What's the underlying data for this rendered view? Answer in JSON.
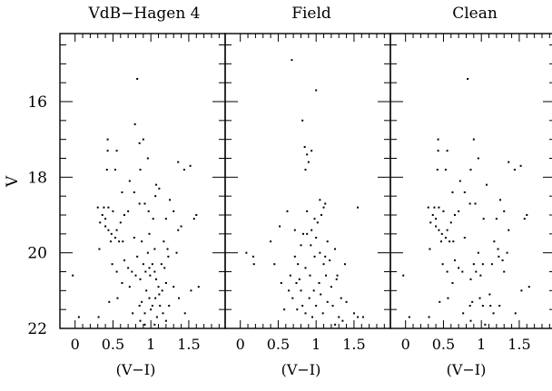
{
  "chart_data": {
    "type": "scatter",
    "ylabel": "V",
    "ylim": [
      22,
      14.2
    ],
    "y_inverted": true,
    "yticks": [
      16,
      18,
      20,
      22
    ],
    "xticks": [
      "0",
      "0.5",
      "1",
      "1.5"
    ],
    "xtick_values": [
      0,
      0.5,
      1,
      1.5
    ],
    "xlim": [
      -0.2,
      1.98
    ],
    "panels": [
      {
        "title": "VdB−Hagen 4",
        "xlabel": "(V−I)",
        "points": [
          [
            0.82,
            15.4
          ],
          [
            0.79,
            16.6
          ],
          [
            0.9,
            17.0
          ],
          [
            0.85,
            17.1
          ],
          [
            0.43,
            17.0
          ],
          [
            0.43,
            17.3
          ],
          [
            0.55,
            17.3
          ],
          [
            0.42,
            17.8
          ],
          [
            0.53,
            17.8
          ],
          [
            0.86,
            17.8
          ],
          [
            0.96,
            17.5
          ],
          [
            1.36,
            17.6
          ],
          [
            1.44,
            17.8
          ],
          [
            1.52,
            17.7
          ],
          [
            0.72,
            18.1
          ],
          [
            1.07,
            18.2
          ],
          [
            1.11,
            18.3
          ],
          [
            0.62,
            18.4
          ],
          [
            0.78,
            18.4
          ],
          [
            1.06,
            18.5
          ],
          [
            1.25,
            18.6
          ],
          [
            1.3,
            18.9
          ],
          [
            0.3,
            18.8
          ],
          [
            0.36,
            19.0
          ],
          [
            0.4,
            19.3
          ],
          [
            0.38,
            18.8
          ],
          [
            0.44,
            18.8
          ],
          [
            0.5,
            18.9
          ],
          [
            0.44,
            19.4
          ],
          [
            0.48,
            19.5
          ],
          [
            0.53,
            19.6
          ],
          [
            0.58,
            19.7
          ],
          [
            0.63,
            19.7
          ],
          [
            0.6,
            19.2
          ],
          [
            0.65,
            19.0
          ],
          [
            0.7,
            18.9
          ],
          [
            0.78,
            19.6
          ],
          [
            0.85,
            18.7
          ],
          [
            0.92,
            18.7
          ],
          [
            0.97,
            18.9
          ],
          [
            1.03,
            19.1
          ],
          [
            1.2,
            19.1
          ],
          [
            1.36,
            19.4
          ],
          [
            1.4,
            19.3
          ],
          [
            1.57,
            19.1
          ],
          [
            1.6,
            19.0
          ],
          [
            0.98,
            19.5
          ],
          [
            1.17,
            19.7
          ],
          [
            0.88,
            19.7
          ],
          [
            1.05,
            19.9
          ],
          [
            0.32,
            19.9
          ],
          [
            0.33,
            19.2
          ],
          [
            0.82,
            20.1
          ],
          [
            0.96,
            20.0
          ],
          [
            1.22,
            19.9
          ],
          [
            1.34,
            20.0
          ],
          [
            0.65,
            20.2
          ],
          [
            0.7,
            20.4
          ],
          [
            0.75,
            20.5
          ],
          [
            0.8,
            20.6
          ],
          [
            0.86,
            20.7
          ],
          [
            0.93,
            20.5
          ],
          [
            0.98,
            20.4
          ],
          [
            1.02,
            20.3
          ],
          [
            1.07,
            20.7
          ],
          [
            1.1,
            20.9
          ],
          [
            1.14,
            20.3
          ],
          [
            1.18,
            20.4
          ],
          [
            1.2,
            20.8
          ],
          [
            1.23,
            20.1
          ],
          [
            1.3,
            20.9
          ],
          [
            0.62,
            20.8
          ],
          [
            0.94,
            21.0
          ],
          [
            0.88,
            21.3
          ],
          [
            0.92,
            21.6
          ],
          [
            0.98,
            21.2
          ],
          [
            1.02,
            21.4
          ],
          [
            1.06,
            21.2
          ],
          [
            1.08,
            21.7
          ],
          [
            1.12,
            21.4
          ],
          [
            1.15,
            21.0
          ],
          [
            1.24,
            21.4
          ],
          [
            0.76,
            21.6
          ],
          [
            0.86,
            21.8
          ],
          [
            1.05,
            21.9
          ],
          [
            1.2,
            21.8
          ],
          [
            1.45,
            21.6
          ],
          [
            1.53,
            21.0
          ],
          [
            1.37,
            21.2
          ],
          [
            0.56,
            21.2
          ],
          [
            0.45,
            21.3
          ],
          [
            0.31,
            21.7
          ],
          [
            0.05,
            21.7
          ],
          [
            -0.03,
            20.6
          ],
          [
            0.49,
            20.3
          ],
          [
            0.55,
            20.5
          ],
          [
            0.72,
            20.9
          ],
          [
            0.9,
            20.3
          ],
          [
            0.99,
            20.6
          ],
          [
            1.05,
            20.5
          ],
          [
            1.11,
            21.1
          ],
          [
            0.85,
            21.4
          ],
          [
            0.92,
            21.9
          ],
          [
            1.0,
            21.5
          ],
          [
            1.16,
            21.6
          ],
          [
            0.4,
            19.1
          ],
          [
            0.55,
            19.4
          ],
          [
            0.47,
            19.7
          ],
          [
            1.63,
            20.9
          ]
        ]
      },
      {
        "title": "Field",
        "xlabel": "(V−I)",
        "points": [
          [
            0.68,
            14.9
          ],
          [
            1.0,
            15.7
          ],
          [
            0.82,
            16.5
          ],
          [
            0.85,
            17.2
          ],
          [
            0.88,
            17.4
          ],
          [
            0.86,
            17.8
          ],
          [
            0.94,
            17.3
          ],
          [
            0.9,
            17.6
          ],
          [
            1.05,
            18.6
          ],
          [
            1.1,
            18.8
          ],
          [
            1.07,
            19.0
          ],
          [
            1.12,
            18.7
          ],
          [
            0.98,
            19.1
          ],
          [
            1.02,
            19.2
          ],
          [
            0.94,
            19.4
          ],
          [
            0.88,
            19.5
          ],
          [
            0.83,
            19.5
          ],
          [
            0.8,
            19.8
          ],
          [
            0.93,
            19.8
          ],
          [
            0.98,
            20.1
          ],
          [
            1.05,
            20.0
          ],
          [
            1.15,
            19.7
          ],
          [
            1.1,
            20.3
          ],
          [
            1.25,
            19.9
          ],
          [
            1.28,
            20.6
          ],
          [
            0.72,
            20.1
          ],
          [
            0.76,
            20.3
          ],
          [
            0.66,
            20.6
          ],
          [
            0.74,
            20.8
          ],
          [
            0.78,
            20.7
          ],
          [
            0.86,
            20.4
          ],
          [
            0.92,
            20.6
          ],
          [
            0.97,
            21.0
          ],
          [
            1.04,
            20.8
          ],
          [
            1.13,
            20.6
          ],
          [
            1.2,
            20.9
          ],
          [
            1.27,
            20.7
          ],
          [
            1.33,
            21.2
          ],
          [
            1.4,
            21.3
          ],
          [
            0.64,
            21.0
          ],
          [
            0.69,
            21.2
          ],
          [
            0.75,
            21.5
          ],
          [
            0.82,
            21.4
          ],
          [
            0.86,
            21.6
          ],
          [
            0.91,
            21.2
          ],
          [
            0.95,
            21.7
          ],
          [
            1.0,
            21.4
          ],
          [
            1.06,
            21.1
          ],
          [
            1.09,
            21.6
          ],
          [
            1.15,
            21.3
          ],
          [
            1.22,
            21.4
          ],
          [
            1.3,
            21.7
          ],
          [
            1.35,
            21.8
          ],
          [
            1.5,
            21.6
          ],
          [
            1.55,
            21.7
          ],
          [
            1.62,
            21.7
          ],
          [
            0.58,
            21.5
          ],
          [
            0.45,
            20.3
          ],
          [
            0.4,
            19.7
          ],
          [
            0.52,
            19.3
          ],
          [
            0.62,
            18.9
          ],
          [
            1.55,
            18.8
          ],
          [
            0.17,
            20.1
          ],
          [
            0.18,
            20.3
          ],
          [
            0.08,
            20.0
          ],
          [
            0.88,
            18.9
          ],
          [
            1.0,
            19.6
          ],
          [
            1.18,
            20.2
          ],
          [
            1.38,
            20.3
          ],
          [
            0.54,
            20.8
          ],
          [
            0.72,
            19.4
          ],
          [
            0.8,
            21.0
          ],
          [
            1.12,
            20.1
          ],
          [
            1.25,
            21.9
          ]
        ]
      },
      {
        "title": "Clean",
        "xlabel": "(V−I)",
        "points": [
          [
            0.82,
            15.4
          ],
          [
            0.9,
            17.0
          ],
          [
            0.43,
            17.0
          ],
          [
            0.43,
            17.3
          ],
          [
            0.55,
            17.3
          ],
          [
            0.42,
            17.8
          ],
          [
            0.53,
            17.8
          ],
          [
            0.86,
            17.8
          ],
          [
            0.96,
            17.5
          ],
          [
            1.36,
            17.6
          ],
          [
            1.44,
            17.8
          ],
          [
            1.52,
            17.7
          ],
          [
            0.72,
            18.1
          ],
          [
            1.07,
            18.2
          ],
          [
            0.62,
            18.4
          ],
          [
            0.78,
            18.4
          ],
          [
            1.25,
            18.6
          ],
          [
            1.3,
            18.9
          ],
          [
            0.3,
            18.8
          ],
          [
            0.36,
            19.0
          ],
          [
            0.4,
            19.3
          ],
          [
            0.38,
            18.8
          ],
          [
            0.44,
            18.8
          ],
          [
            0.5,
            18.9
          ],
          [
            0.44,
            19.4
          ],
          [
            0.48,
            19.5
          ],
          [
            0.53,
            19.6
          ],
          [
            0.58,
            19.7
          ],
          [
            0.63,
            19.7
          ],
          [
            0.6,
            19.2
          ],
          [
            0.65,
            19.0
          ],
          [
            0.7,
            18.9
          ],
          [
            0.78,
            19.6
          ],
          [
            0.85,
            18.7
          ],
          [
            0.92,
            18.7
          ],
          [
            1.03,
            19.1
          ],
          [
            1.2,
            19.1
          ],
          [
            1.36,
            19.4
          ],
          [
            1.57,
            19.1
          ],
          [
            1.6,
            19.0
          ],
          [
            1.17,
            19.7
          ],
          [
            0.32,
            19.9
          ],
          [
            0.33,
            19.2
          ],
          [
            0.96,
            20.0
          ],
          [
            1.22,
            19.9
          ],
          [
            1.34,
            20.0
          ],
          [
            0.65,
            20.2
          ],
          [
            0.7,
            20.4
          ],
          [
            0.75,
            20.5
          ],
          [
            0.86,
            20.7
          ],
          [
            0.93,
            20.5
          ],
          [
            1.02,
            20.3
          ],
          [
            1.14,
            20.3
          ],
          [
            1.23,
            20.1
          ],
          [
            0.62,
            20.8
          ],
          [
            0.88,
            21.3
          ],
          [
            0.98,
            21.2
          ],
          [
            1.02,
            21.4
          ],
          [
            1.12,
            21.4
          ],
          [
            1.24,
            21.4
          ],
          [
            0.76,
            21.6
          ],
          [
            0.86,
            21.8
          ],
          [
            1.05,
            21.9
          ],
          [
            1.45,
            21.6
          ],
          [
            1.53,
            21.0
          ],
          [
            0.56,
            21.2
          ],
          [
            0.45,
            21.3
          ],
          [
            0.31,
            21.7
          ],
          [
            0.05,
            21.7
          ],
          [
            -0.03,
            20.6
          ],
          [
            0.49,
            20.3
          ],
          [
            0.55,
            20.5
          ],
          [
            0.9,
            20.3
          ],
          [
            0.99,
            20.6
          ],
          [
            1.11,
            21.1
          ],
          [
            0.85,
            21.4
          ],
          [
            1.16,
            21.6
          ],
          [
            0.4,
            19.1
          ],
          [
            0.55,
            19.4
          ],
          [
            0.47,
            19.7
          ],
          [
            1.63,
            20.9
          ],
          [
            1.3,
            20.5
          ],
          [
            1.28,
            20.2
          ]
        ]
      }
    ]
  }
}
